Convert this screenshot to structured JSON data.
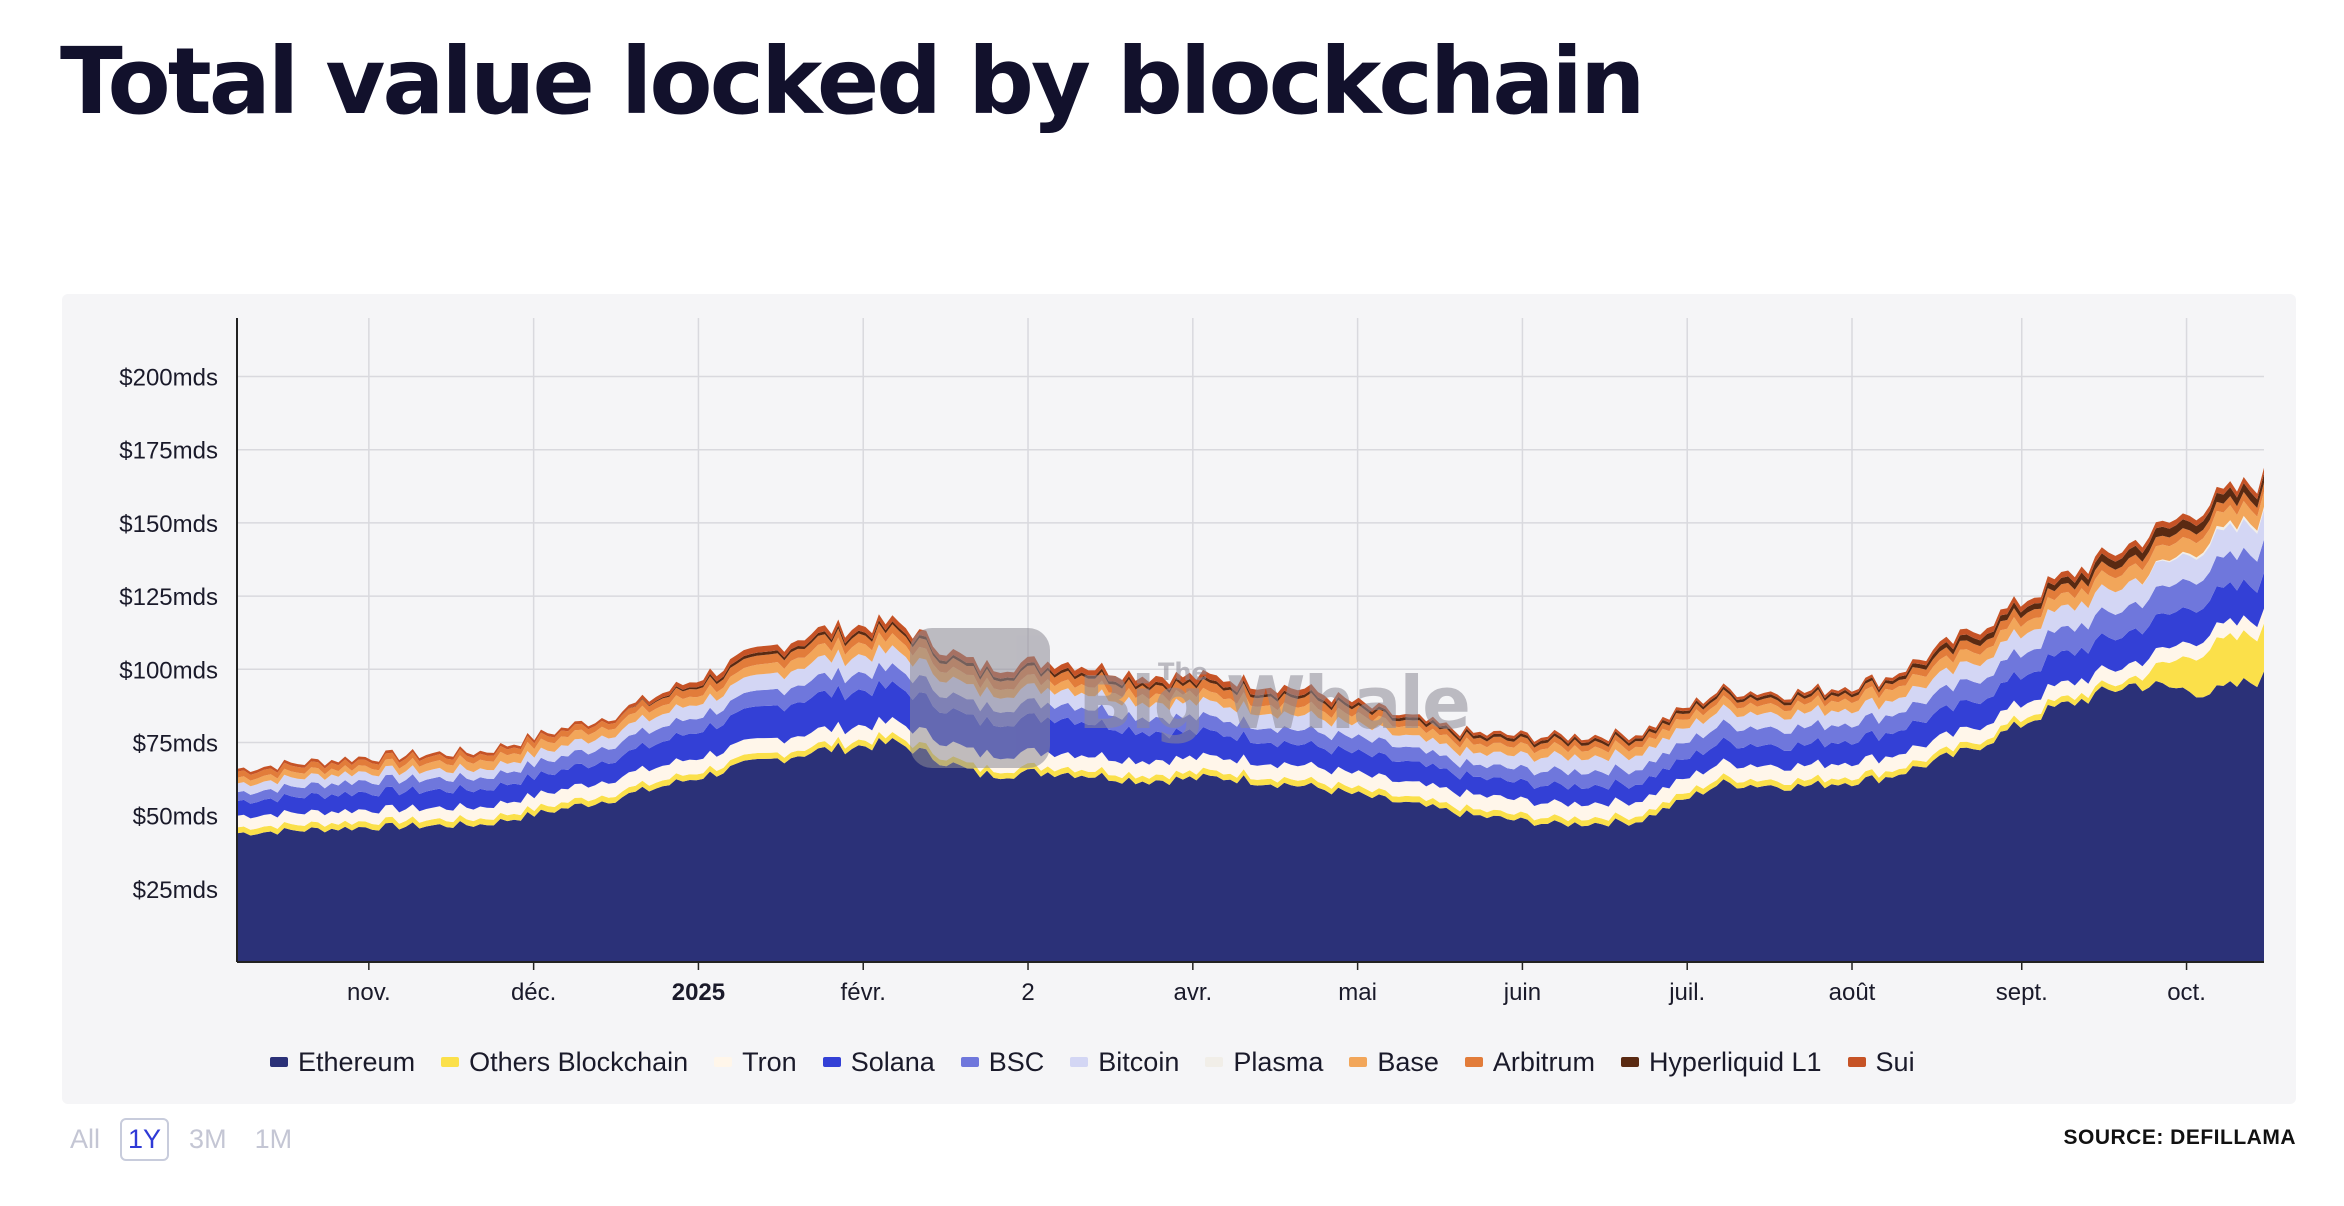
{
  "title": "Total value locked by blockchain",
  "source": "SOURCE: DEFILLAMA",
  "watermark": {
    "line1": "The",
    "line2": "Big Whale"
  },
  "range_buttons": [
    {
      "label": "All",
      "active": false
    },
    {
      "label": "1Y",
      "active": true
    },
    {
      "label": "3M",
      "active": false
    },
    {
      "label": "1M",
      "active": false
    }
  ],
  "chart_data": {
    "type": "area",
    "stacked": true,
    "title": "Total value locked by blockchain",
    "xlabel": "",
    "ylabel": "",
    "ylim": [
      0,
      220
    ],
    "y_unit": "mds",
    "yticks": [
      {
        "value": 25,
        "label": "$25mds"
      },
      {
        "value": 50,
        "label": "$50mds"
      },
      {
        "value": 75,
        "label": "$75mds"
      },
      {
        "value": 100,
        "label": "$100mds"
      },
      {
        "value": 125,
        "label": "$125mds"
      },
      {
        "value": 150,
        "label": "$150mds"
      },
      {
        "value": 175,
        "label": "$175mds"
      },
      {
        "value": 200,
        "label": "$200mds"
      }
    ],
    "x_month_index": [
      0,
      0.75,
      1.5,
      2.3,
      3.0,
      3.5,
      4.0,
      4.5,
      5.0,
      5.5,
      6.0,
      6.5,
      7.0,
      7.5,
      8.0,
      8.5,
      9.0,
      9.5,
      10.0,
      10.5,
      11.0,
      11.5,
      12.0,
      12.3
    ],
    "xticks": [
      {
        "pos": 0.8,
        "label": "nov.",
        "bold": false
      },
      {
        "pos": 1.8,
        "label": "déc.",
        "bold": false
      },
      {
        "pos": 2.8,
        "label": "2025",
        "bold": true
      },
      {
        "pos": 3.8,
        "label": "févr.",
        "bold": false
      },
      {
        "pos": 4.8,
        "label": "2",
        "bold": false
      },
      {
        "pos": 5.8,
        "label": "avr.",
        "bold": false
      },
      {
        "pos": 6.8,
        "label": "mai",
        "bold": false
      },
      {
        "pos": 7.8,
        "label": "juin",
        "bold": false
      },
      {
        "pos": 8.8,
        "label": "juil.",
        "bold": false
      },
      {
        "pos": 9.8,
        "label": "août",
        "bold": false
      },
      {
        "pos": 10.83,
        "label": "sept.",
        "bold": false
      },
      {
        "pos": 11.83,
        "label": "oct.",
        "bold": false
      }
    ],
    "xlim": [
      0,
      12.3
    ],
    "series": [
      {
        "name": "Ethereum",
        "color": "#2b3178",
        "values": [
          44,
          46,
          47,
          56,
          66,
          72,
          75,
          64,
          65,
          62,
          63,
          60,
          55,
          50,
          47,
          48,
          61,
          60,
          63,
          72,
          86,
          95,
          92,
          97
        ]
      },
      {
        "name": "Others Blockchain",
        "color": "#fbe04a",
        "values": [
          2,
          2,
          2,
          2,
          2,
          2,
          2,
          2,
          2,
          2,
          2,
          2,
          2,
          2,
          2,
          2,
          2,
          2,
          2,
          2,
          2,
          2,
          16,
          16
        ]
      },
      {
        "name": "Tron",
        "color": "#fff6ea",
        "values": [
          4,
          4,
          4,
          5,
          5,
          5,
          5,
          5,
          5,
          5,
          5,
          5,
          5,
          5,
          5,
          5,
          5,
          5,
          5,
          5,
          5,
          5,
          5,
          5
        ]
      },
      {
        "name": "Solana",
        "color": "#3340d6",
        "values": [
          5,
          6,
          6,
          7,
          10,
          12,
          12,
          11,
          12,
          10,
          8,
          7,
          7,
          6,
          6,
          6,
          7,
          7,
          8,
          9,
          10,
          11,
          12,
          12
        ]
      },
      {
        "name": "BSC",
        "color": "#6f77dc",
        "values": [
          3,
          4,
          4,
          5,
          5,
          6,
          6,
          5,
          5,
          5,
          5,
          5,
          5,
          4,
          5,
          5,
          6,
          6,
          6,
          7,
          8,
          9,
          10,
          11
        ]
      },
      {
        "name": "Bitcoin",
        "color": "#d3d6f4",
        "values": [
          3,
          3,
          3,
          4,
          5,
          6,
          6,
          5,
          5,
          5,
          5,
          5,
          4,
          4,
          5,
          5,
          5,
          5,
          5,
          6,
          7,
          8,
          9,
          10
        ]
      },
      {
        "name": "Plasma",
        "color": "#f1eee8",
        "values": [
          0,
          0,
          0,
          0,
          0,
          0,
          0,
          0,
          0,
          0,
          0,
          0,
          0,
          0,
          0,
          0,
          0,
          0,
          0,
          0,
          0,
          0,
          1,
          1
        ]
      },
      {
        "name": "Base",
        "color": "#f2a65a",
        "values": [
          2,
          2,
          3,
          3,
          3,
          4,
          4,
          3,
          3,
          3,
          3,
          3,
          3,
          3,
          3,
          3,
          3,
          3,
          4,
          4,
          4,
          5,
          5,
          5
        ]
      },
      {
        "name": "Arbitrum",
        "color": "#e27c3a",
        "values": [
          2,
          2,
          2,
          2,
          3,
          3,
          3,
          3,
          3,
          3,
          3,
          3,
          2,
          2,
          2,
          2,
          2,
          2,
          2,
          3,
          3,
          3,
          3,
          3
        ]
      },
      {
        "name": "Hyperliquid L1",
        "color": "#5a2a12",
        "values": [
          0,
          0,
          0,
          0,
          1,
          1,
          1,
          1,
          1,
          1,
          1,
          1,
          1,
          1,
          1,
          1,
          1,
          1,
          1,
          2,
          2,
          3,
          3,
          3
        ]
      },
      {
        "name": "Sui",
        "color": "#c65326",
        "values": [
          1,
          1,
          1,
          1,
          2,
          2,
          2,
          2,
          2,
          2,
          2,
          2,
          1,
          1,
          1,
          1,
          1,
          1,
          1,
          2,
          2,
          2,
          2,
          2
        ]
      }
    ]
  }
}
